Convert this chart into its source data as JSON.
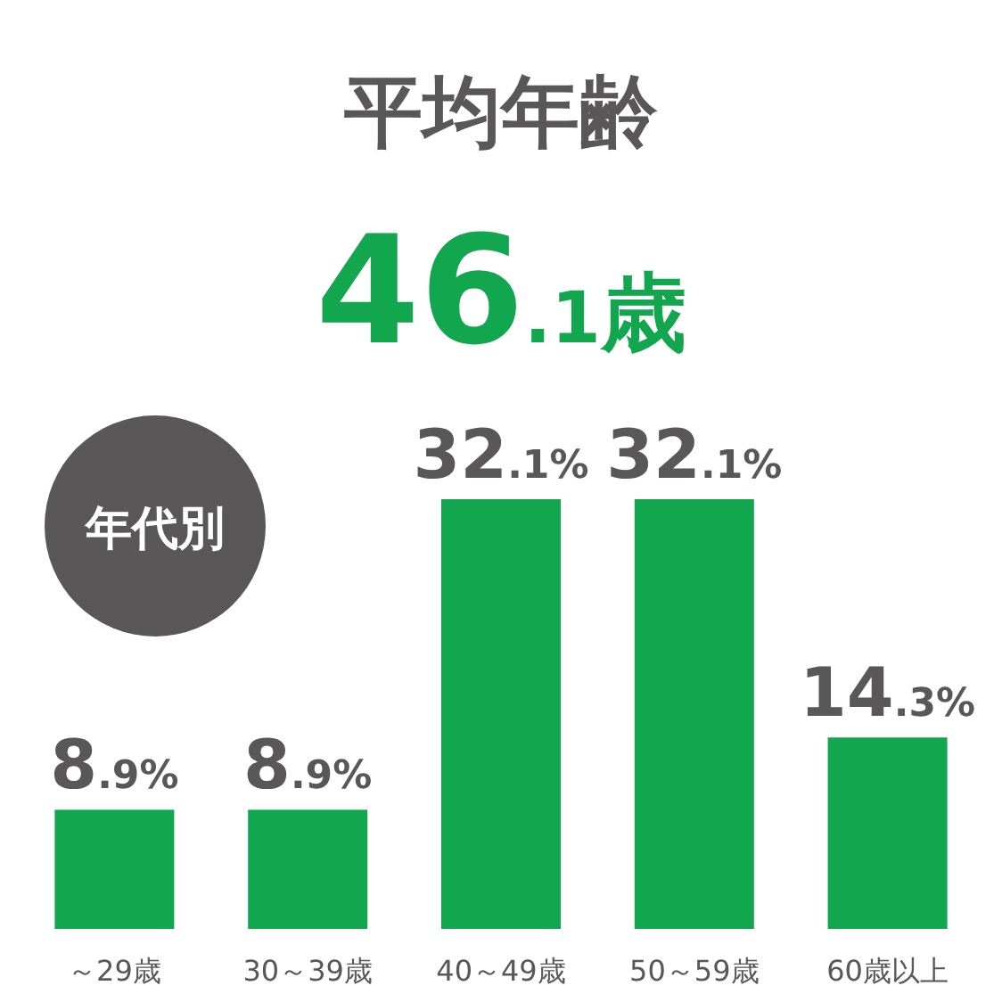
{
  "chart_data": {
    "type": "bar",
    "title": "平均年齢",
    "subtitle": "46.1歳",
    "annotations": [
      "年代別"
    ],
    "categories": [
      "～29歳",
      "30～39歳",
      "40～49歳",
      "50～59歳",
      "60歳以上"
    ],
    "values": [
      8.9,
      8.9,
      32.1,
      32.1,
      14.3
    ],
    "value_labels": [
      "8.9%",
      "8.9%",
      "32.1%",
      "32.1%",
      "14.3%"
    ],
    "color": "#12a64f"
  }
}
